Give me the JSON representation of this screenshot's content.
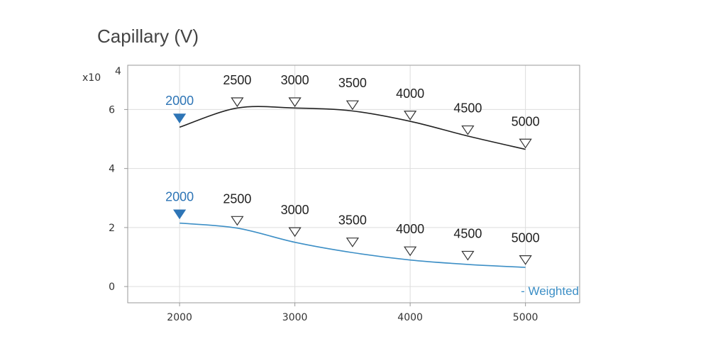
{
  "title": "Capillary (V)",
  "chart_data": {
    "type": "line",
    "title": "Capillary (V)",
    "exponent_label": "x10",
    "exponent_value": "4",
    "x": [
      2000,
      2500,
      3000,
      3500,
      4000,
      4500,
      5000
    ],
    "x_ticks": [
      2000,
      3000,
      4000,
      5000
    ],
    "y_ticks": [
      0,
      2,
      4,
      6
    ],
    "xlim": [
      1550,
      5470
    ],
    "ylim": [
      -0.55,
      7.5
    ],
    "y_unit_scale": 10000,
    "grid": true,
    "series": [
      {
        "values": [
          54000,
          60500,
          60500,
          59500,
          56000,
          51000,
          46500
        ],
        "marker_offsets": [
          0.3,
          0.2,
          0.2,
          0.2,
          0.2,
          0.2,
          0.2
        ],
        "label_gap": [
          0.45,
          0.6,
          0.6,
          0.6,
          0.6,
          0.6,
          0.6
        ],
        "labels": [
          "2000",
          "2500",
          "3000",
          "3500",
          "4000",
          "4500",
          "5000"
        ],
        "color": "#222222",
        "selected_index": 0,
        "selected_color": "#2e75b6"
      },
      {
        "name": "- Weighted",
        "values": [
          21500,
          19800,
          15000,
          11500,
          9000,
          7500,
          6500
        ],
        "marker_offsets": [
          0.3,
          0.25,
          0.35,
          0.35,
          0.3,
          0.3,
          0.25
        ],
        "label_gap": [
          0.45,
          0.6,
          0.6,
          0.6,
          0.6,
          0.6,
          0.6
        ],
        "labels": [
          "2000",
          "2500",
          "3000",
          "3500",
          "4000",
          "4500",
          "5000"
        ],
        "color": "#3d8fc6",
        "selected_index": 0,
        "selected_color": "#2e75b6"
      }
    ]
  }
}
